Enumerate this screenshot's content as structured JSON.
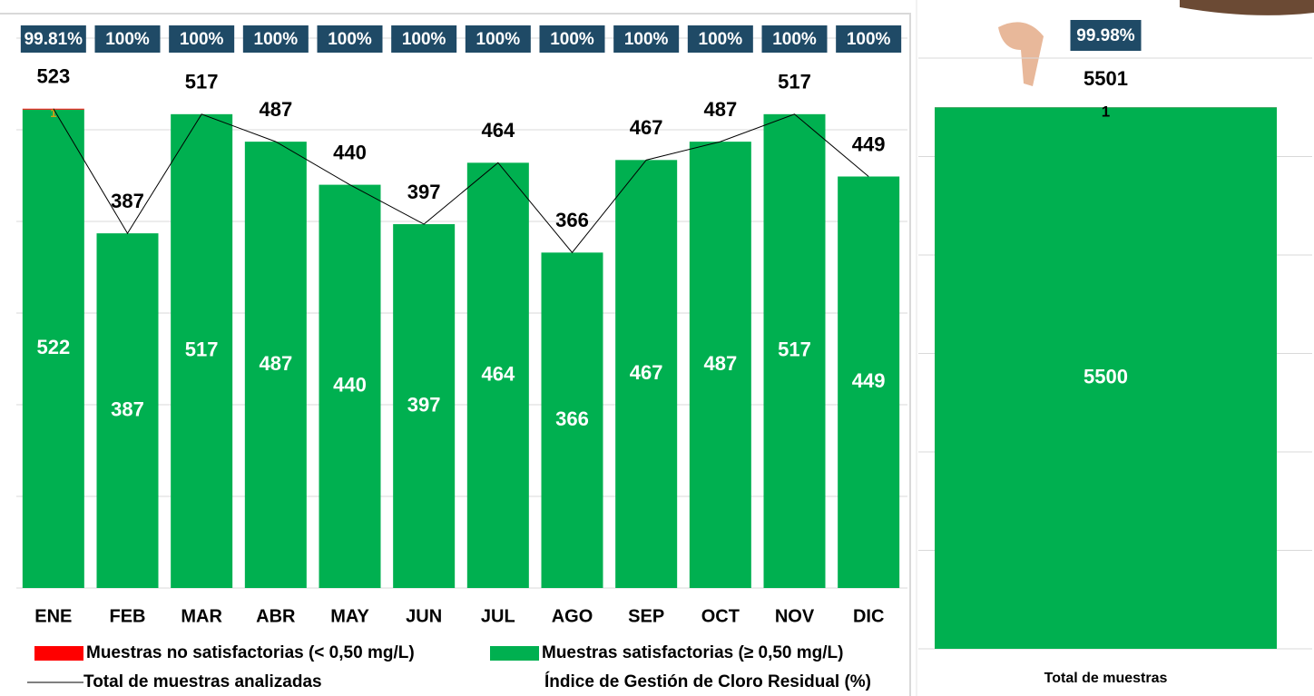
{
  "chart_data": [
    {
      "type": "bar",
      "stacked": true,
      "categories": [
        "ENE",
        "FEB",
        "MAR",
        "ABR",
        "MAY",
        "JUN",
        "JUL",
        "AGO",
        "SEP",
        "OCT",
        "NOV",
        "DIC"
      ],
      "series": [
        {
          "name": "Muestras no satisfactorias (< 0,50 mg/L)",
          "color": "#ff0000",
          "values": [
            1,
            0,
            0,
            0,
            0,
            0,
            0,
            0,
            0,
            0,
            0,
            0
          ]
        },
        {
          "name": "Muestras satisfactorias (≥ 0,50 mg/L)",
          "color": "#00b050",
          "values": [
            522,
            387,
            517,
            487,
            440,
            397,
            464,
            366,
            467,
            487,
            517,
            449
          ]
        },
        {
          "name": "Total de muestras analizadas",
          "type": "line",
          "color": "#000000",
          "values": [
            523,
            387,
            517,
            487,
            440,
            397,
            464,
            366,
            467,
            487,
            517,
            449
          ]
        },
        {
          "name": "Índice de Gestión de Cloro Residual (%)",
          "color": "#1f4a66",
          "values": [
            99.81,
            100,
            100,
            100,
            100,
            100,
            100,
            100,
            100,
            100,
            100,
            100
          ],
          "value_labels": [
            "99.81%",
            "100%",
            "100%",
            "100%",
            "100%",
            "100%",
            "100%",
            "100%",
            "100%",
            "100%",
            "100%",
            "100%"
          ]
        }
      ],
      "ylim": [
        0,
        600
      ],
      "yticks": [
        0,
        100,
        200,
        300,
        400,
        500,
        600
      ],
      "grid": true
    },
    {
      "type": "bar",
      "stacked": true,
      "categories": [
        "Total de muestras"
      ],
      "series": [
        {
          "color": "#ff0000",
          "values": [
            1
          ]
        },
        {
          "color": "#00b050",
          "values": [
            5500
          ]
        },
        {
          "type": "label",
          "values": [
            5501
          ]
        },
        {
          "color": "#1f4a66",
          "values": [
            99.98
          ],
          "value_labels": [
            "99.98%"
          ]
        }
      ],
      "ylim": [
        0,
        6000
      ],
      "yticks": [
        0,
        1000,
        2000,
        3000,
        4000,
        5000,
        6000
      ],
      "grid": true
    }
  ]
}
